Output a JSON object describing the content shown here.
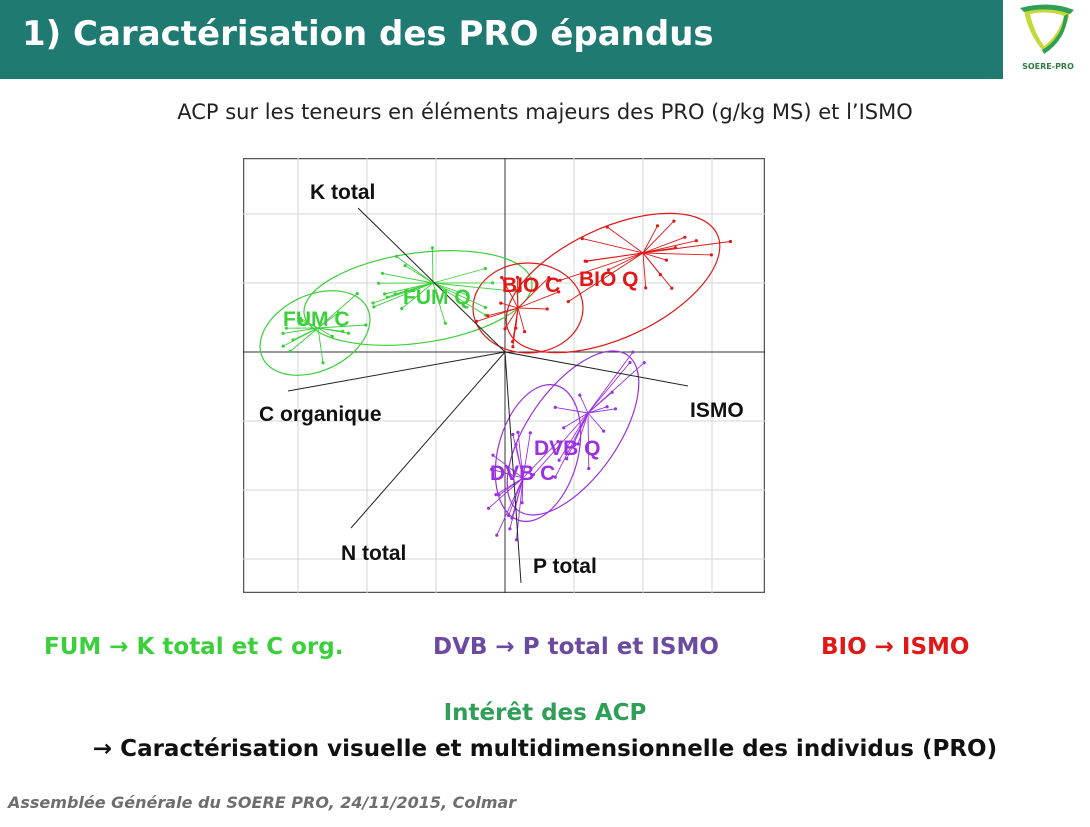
{
  "header": {
    "title": "1) Caractérisation des PRO épandus",
    "bg_color": "#1f7a72"
  },
  "logo": {
    "text": "SOERE-PRO"
  },
  "subtitle": "ACP sur les teneurs en éléments majeurs des PRO (g/kg MS) et l’ISMO",
  "chart_data": {
    "type": "scatter",
    "title": "",
    "variables": [
      "K total",
      "C organique",
      "N total",
      "P total",
      "ISMO"
    ],
    "groups": [
      {
        "name": "FUM C",
        "color": "#3ccf3c"
      },
      {
        "name": "FUM Q",
        "color": "#3ccf3c"
      },
      {
        "name": "BIO C",
        "color": "#e01818"
      },
      {
        "name": "BIO Q",
        "color": "#e01818"
      },
      {
        "name": "DVB Q",
        "color": "#9b30e0"
      },
      {
        "name": "DVB C",
        "color": "#9b30e0"
      }
    ],
    "grid": true
  },
  "summary": {
    "fum": "FUM → K total et C org.",
    "dvb": "DVB → P total et ISMO",
    "bio": "BIO → ISMO"
  },
  "interet": "Intérêt des ACP",
  "conclusion": "→ Caractérisation visuelle et multidimensionnelle des individus (PRO)",
  "footer": "Assemblée Générale du SOERE PRO, 24/11/2015, Colmar"
}
